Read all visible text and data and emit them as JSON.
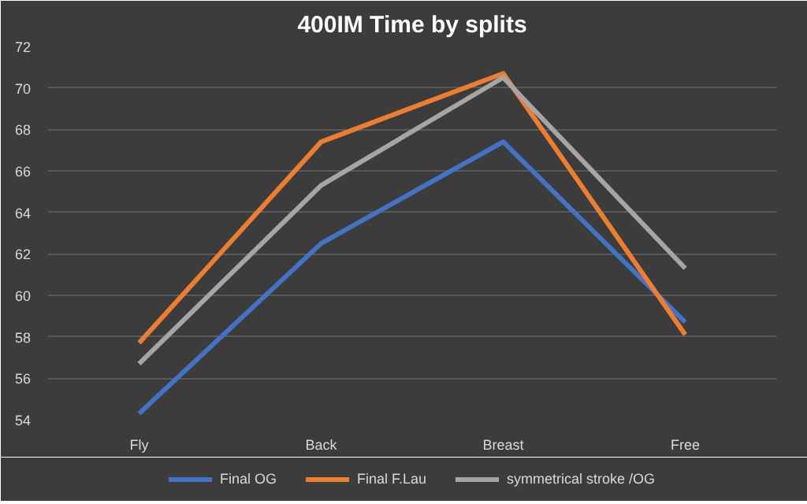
{
  "chart_data": {
    "type": "line",
    "title": "400IM Time by splits",
    "categories": [
      "Fly",
      "Back",
      "Breast",
      "Free"
    ],
    "series": [
      {
        "name": "Final OG",
        "color": "#4472c4",
        "values": [
          54.3,
          62.5,
          67.4,
          58.7
        ]
      },
      {
        "name": "Final F.Lau",
        "color": "#ed7d31",
        "values": [
          57.7,
          67.4,
          70.7,
          58.1
        ]
      },
      {
        "name": "symmetrical stroke /OG",
        "color": "#a5a5a5",
        "values": [
          56.7,
          65.3,
          70.5,
          61.3
        ]
      }
    ],
    "ylim": [
      54,
      72
    ],
    "yticks": [
      54,
      56,
      58,
      60,
      62,
      64,
      66,
      68,
      70,
      72
    ],
    "grid": "y",
    "legend": "bottom",
    "marker": "none",
    "line_style": "solid"
  }
}
